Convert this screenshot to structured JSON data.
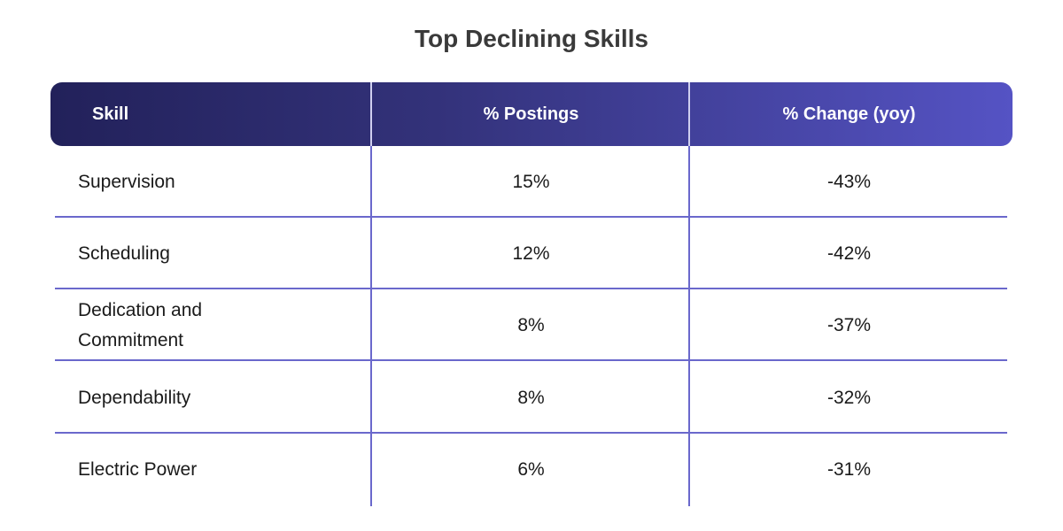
{
  "title": "Top Declining Skills",
  "colors": {
    "header_start": "#22215a",
    "header_end": "#5553c4",
    "rule": "#6a68cc"
  },
  "chart_data": {
    "type": "table",
    "title": "Top Declining Skills",
    "columns": [
      "Skill",
      "% Postings",
      "% Change (yoy)"
    ],
    "rows": [
      [
        "Supervision",
        "15%",
        "-43%"
      ],
      [
        "Scheduling",
        "12%",
        "-42%"
      ],
      [
        "Dedication and Commitment",
        "8%",
        "-37%"
      ],
      [
        "Dependability",
        "8%",
        "-32%"
      ],
      [
        "Electric Power",
        "6%",
        "-31%"
      ]
    ]
  }
}
